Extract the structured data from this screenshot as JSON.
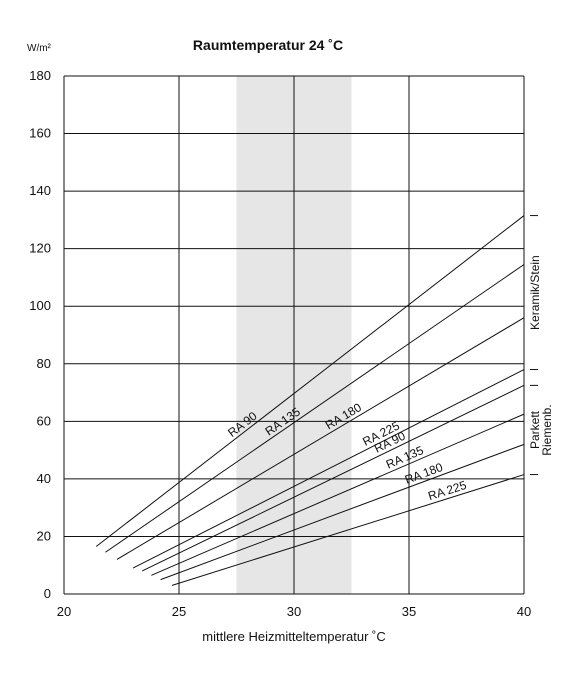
{
  "chart_data": {
    "type": "line",
    "title": "Raumtemperatur 24 ˚C",
    "ylabel_unit": "W/m²",
    "xlabel": "mittlere Heizmitteltemperatur ˚C",
    "xlim": [
      20,
      40
    ],
    "ylim": [
      0,
      180
    ],
    "xticks": [
      "20",
      "25",
      "30",
      "35",
      "40"
    ],
    "yticks": [
      "0",
      "20",
      "40",
      "60",
      "80",
      "100",
      "120",
      "140",
      "160",
      "180"
    ],
    "shaded_band": [
      27.5,
      32.5
    ],
    "grid": true,
    "series": [
      {
        "name": "RA 90",
        "group": "Keramik/Stein",
        "points": [
          [
            21.4,
            16.5
          ],
          [
            40,
            131.5
          ]
        ]
      },
      {
        "name": "RA 135",
        "group": "Keramik/Stein",
        "points": [
          [
            21.8,
            14.5
          ],
          [
            40,
            114.5
          ]
        ]
      },
      {
        "name": "RA 180",
        "group": "Keramik/Stein",
        "points": [
          [
            22.3,
            12.0
          ],
          [
            40,
            96.0
          ]
        ]
      },
      {
        "name": "RA 225",
        "group": "Keramik/Stein",
        "points": [
          [
            23.0,
            9.0
          ],
          [
            40,
            78.0
          ]
        ]
      },
      {
        "name": "RA 90",
        "group": "Parkett Riemenb.",
        "points": [
          [
            23.4,
            8.0
          ],
          [
            40,
            72.5
          ]
        ]
      },
      {
        "name": "RA 135",
        "group": "Parkett Riemenb.",
        "points": [
          [
            23.8,
            6.5
          ],
          [
            40,
            62.5
          ]
        ]
      },
      {
        "name": "RA 180",
        "group": "Parkett Riemenb.",
        "points": [
          [
            24.2,
            5.0
          ],
          [
            40,
            52.0
          ]
        ]
      },
      {
        "name": "RA 225",
        "group": "Parkett Riemenb.",
        "points": [
          [
            24.7,
            3.0
          ],
          [
            40,
            41.5
          ]
        ]
      }
    ],
    "groups": [
      {
        "label": "Keramik/Stein",
        "range": [
          72,
          131
        ]
      },
      {
        "label_line1": "Parkett",
        "label_line2": "Riemenb.",
        "range": [
          41,
          72
        ]
      }
    ]
  }
}
